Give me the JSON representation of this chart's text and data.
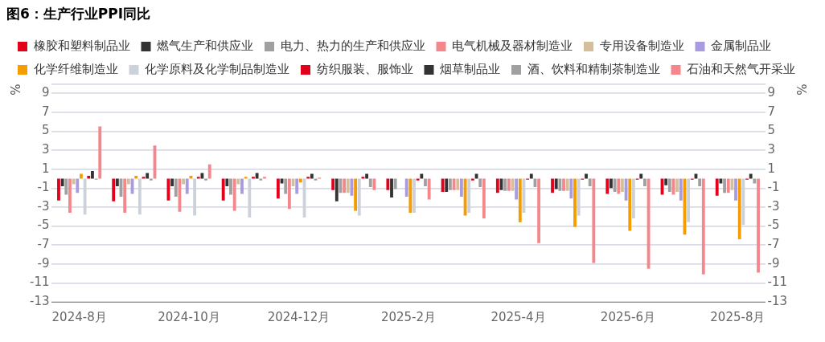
{
  "chart_data": {
    "type": "bar",
    "title": "图6：生产行业PPI同比",
    "ylabel": "%",
    "y2label": "%",
    "categories": [
      "2024-8月",
      null,
      "2024-10月",
      null,
      "2024-12月",
      null,
      "2025-2月",
      null,
      "2025-4月",
      null,
      "2025-6月",
      null,
      "2025-8月"
    ],
    "series": [
      {
        "name": "橡胶和塑料制品业",
        "color": "#e3001b",
        "values": [
          -2.3,
          -2.4,
          -2.3,
          -2.3,
          -2.1,
          -1.2,
          -1.2,
          -1.4,
          -1.5,
          -1.5,
          -1.6,
          -1.7,
          -1.8
        ]
      },
      {
        "name": "燃气生产和供应业",
        "color": "#333333",
        "values": [
          -0.8,
          -0.8,
          -0.8,
          -0.8,
          -0.5,
          -2.4,
          -2.0,
          -1.4,
          -1.2,
          -1.1,
          -1.0,
          -0.7,
          -0.5
        ]
      },
      {
        "name": "电力、热力的生产和供应业",
        "color": "#a0a0a0",
        "values": [
          -1.7,
          -1.9,
          -1.9,
          -1.7,
          -1.6,
          -1.5,
          -1.1,
          -1.2,
          -1.3,
          -1.3,
          -1.4,
          -1.4,
          -1.5
        ]
      },
      {
        "name": "电气机械及器材制造业",
        "color": "#f4868c",
        "values": [
          -3.6,
          -3.6,
          -3.5,
          -3.4,
          -3.2,
          -1.5,
          0,
          -1.2,
          -1.3,
          -1.3,
          -1.6,
          -1.7,
          -1.5
        ]
      },
      {
        "name": "专用设备制造业",
        "color": "#d4bf9a",
        "values": [
          -0.6,
          -0.6,
          -0.6,
          -0.6,
          -0.8,
          -1.5,
          0,
          -1.2,
          -1.3,
          -1.3,
          -1.4,
          -1.4,
          -1.2
        ]
      },
      {
        "name": "金属制品业",
        "color": "#a99be0",
        "values": [
          -1.5,
          -1.6,
          -1.6,
          -1.6,
          -1.6,
          -1.8,
          -1.9,
          -1.9,
          -2.2,
          -2.1,
          -2.3,
          -2.3,
          -2.3
        ]
      },
      {
        "name": "化学纤维制造业",
        "color": "#f59c00",
        "values": [
          0.5,
          0.3,
          0.3,
          0.2,
          -0.4,
          -3.4,
          -3.6,
          -3.9,
          -4.6,
          -5.1,
          -5.5,
          -5.9,
          -6.4
        ]
      },
      {
        "name": "化学原料及化学制品制造业",
        "color": "#cdd1da",
        "values": [
          -3.8,
          -3.8,
          -3.9,
          -4.1,
          -4.1,
          -3.9,
          -3.6,
          -3.6,
          -3.6,
          -3.9,
          -4.2,
          -4.6,
          -4.9
        ]
      },
      {
        "name": "纺织服装、服饰业",
        "color": "#e3001b",
        "values": [
          0.3,
          0.2,
          0.2,
          0.2,
          0.2,
          0.2,
          -0.2,
          -0.2,
          -0.1,
          -0.1,
          -0.1,
          -0.1,
          -0.1
        ]
      },
      {
        "name": "烟草制品业",
        "color": "#333333",
        "values": [
          0.8,
          0.6,
          0.6,
          0.6,
          0.5,
          0.5,
          0.5,
          0.5,
          0.5,
          0.5,
          0.5,
          0.5,
          0.5
        ]
      },
      {
        "name": "酒、饮料和精制茶制造业",
        "color": "#a0a0a0",
        "values": [
          -0.1,
          -0.2,
          -0.2,
          -0.2,
          -0.2,
          -0.9,
          -0.8,
          -0.9,
          -0.9,
          -0.8,
          -0.8,
          -0.8,
          -0.5
        ]
      },
      {
        "name": "石油和天然气开采业",
        "color": "#f4868c",
        "values": [
          5.5,
          3.5,
          1.5,
          0.2,
          0.1,
          -1.2,
          -2.2,
          -4.2,
          -6.8,
          -8.9,
          -9.5,
          -10.1,
          -9.9
        ]
      }
    ],
    "ylim": [
      -13,
      10
    ],
    "yticks": [
      {
        "value": 10,
        "label": null
      },
      9,
      7,
      5,
      3,
      1,
      -1,
      -3,
      -5,
      -7,
      -9,
      -11,
      -13
    ],
    "y2lim": [
      -13,
      10
    ],
    "y2ticks": [
      {
        "value": 10,
        "label": null
      },
      9,
      7,
      5,
      3,
      1,
      -1,
      -3,
      -5,
      -7,
      -9,
      -11,
      -13
    ],
    "grid": "y",
    "legend": "top"
  }
}
